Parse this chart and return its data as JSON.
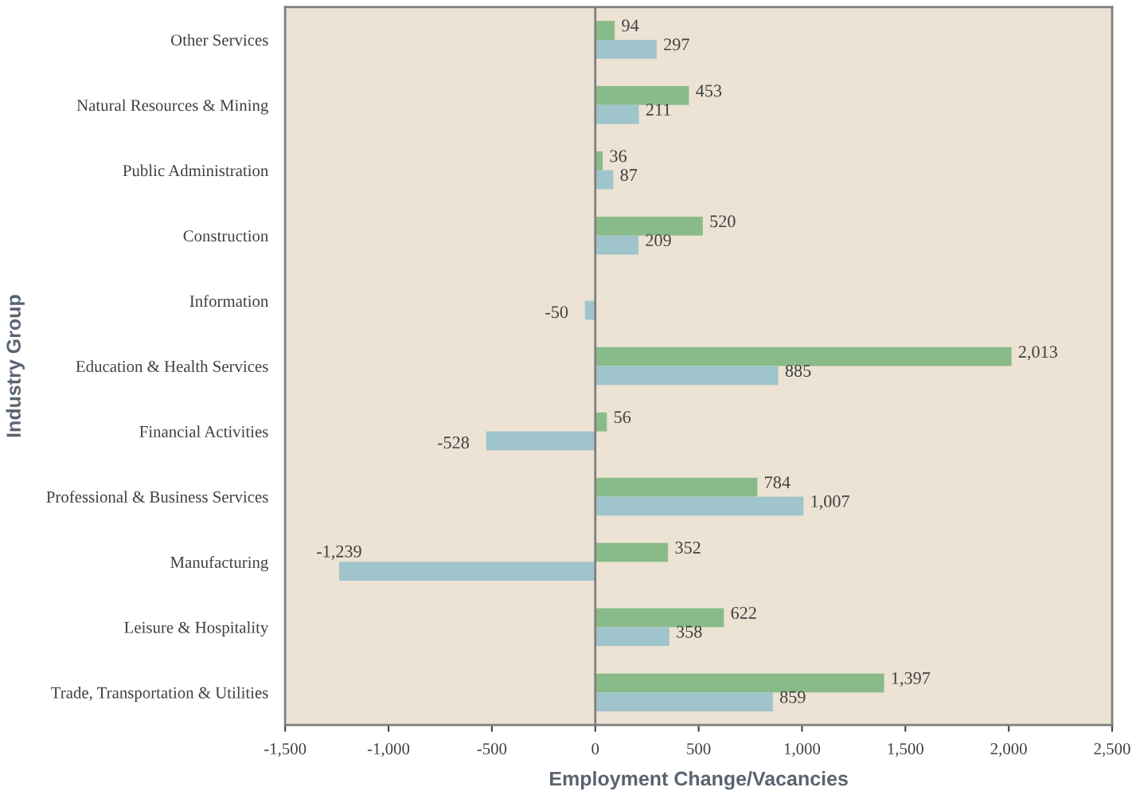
{
  "chart_data": {
    "type": "bar",
    "orientation": "horizontal",
    "xlabel": "Employment Change/Vacancies",
    "ylabel": "Industry Group",
    "categories": [
      "Other Services",
      "Natural Resources & Mining",
      "Public Administration",
      "Construction",
      "Information",
      "Education & Health Services",
      "Financial Activities",
      "Professional & Business Services",
      "Manufacturing",
      "Leisure & Hospitality",
      "Trade, Transportation & Utilities"
    ],
    "series": [
      {
        "color": "#89bb89",
        "values": [
          94,
          453,
          36,
          520,
          null,
          2013,
          56,
          784,
          352,
          622,
          1397
        ],
        "value_labels": [
          "94",
          "453",
          "36",
          "520",
          null,
          "2,013",
          "56",
          "784",
          "352",
          "622",
          "1,397"
        ]
      },
      {
        "color": "#9fc4cb",
        "values": [
          297,
          211,
          87,
          209,
          -50,
          885,
          -528,
          1007,
          -1239,
          358,
          859
        ],
        "value_labels": [
          "297",
          "211",
          "87",
          "209",
          "-50",
          "885",
          "-528",
          "1,007",
          "-1,239",
          "358",
          "859"
        ]
      }
    ],
    "xlim": [
      -1500,
      2500
    ],
    "xticks": [
      {
        "value": -1500,
        "label": "-1,500"
      },
      {
        "value": -1000,
        "label": "-1,000"
      },
      -500,
      0,
      500,
      {
        "value": 1000,
        "label": "1,000"
      },
      {
        "value": 1500,
        "label": "1,500"
      },
      {
        "value": 2000,
        "label": "2,000"
      },
      {
        "value": 2500,
        "label": "2,500"
      }
    ],
    "ref_lines": [
      {
        "axis": "x",
        "value": 0,
        "color": "#7f7f7f"
      }
    ],
    "grid": false,
    "legend": false
  }
}
